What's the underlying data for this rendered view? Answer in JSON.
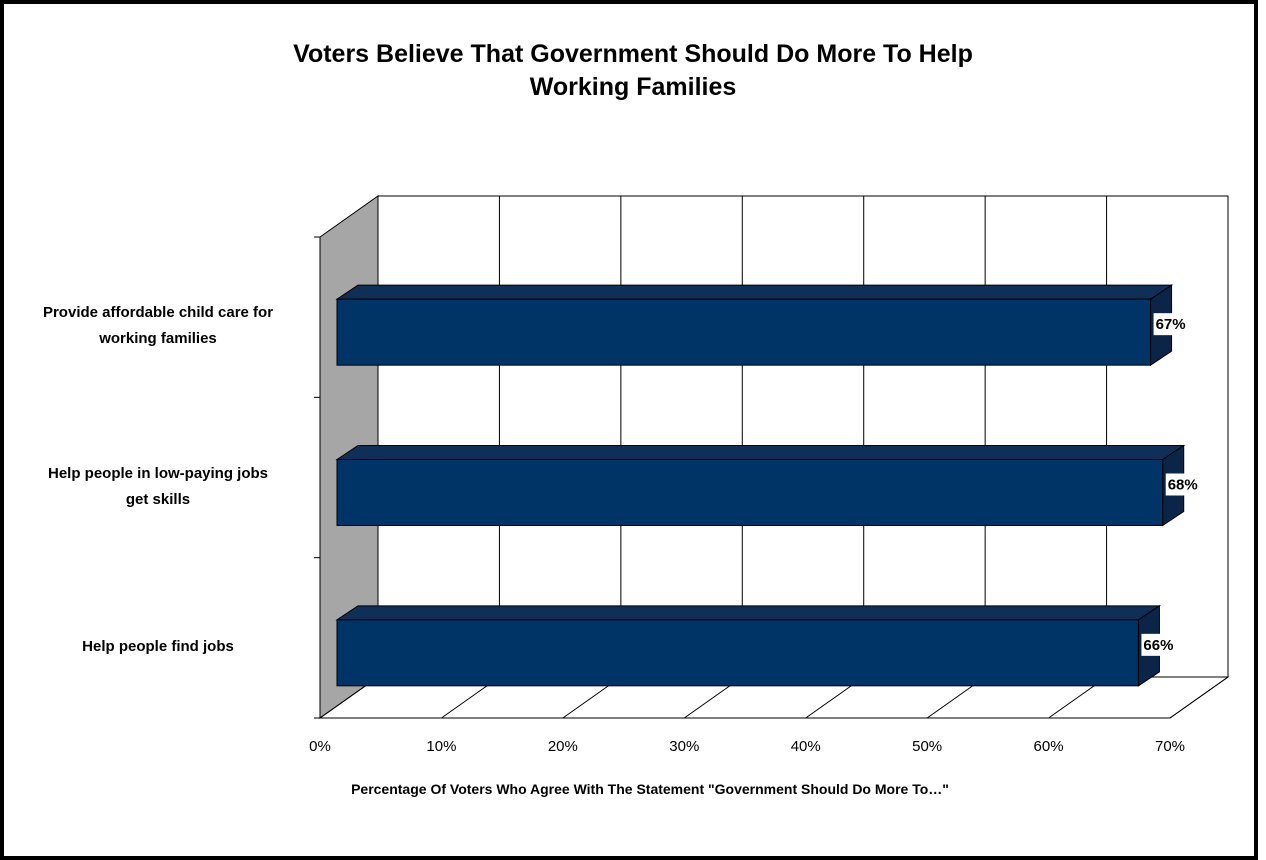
{
  "chart_data": {
    "type": "bar",
    "orientation": "horizontal",
    "title_lines": [
      "Voters Believe That Government Should Do More To Help",
      "Working Families"
    ],
    "categories": [
      {
        "lines": [
          "Provide affordable child care for",
          "working families"
        ]
      },
      {
        "lines": [
          "Help people in low-paying jobs",
          "get skills"
        ]
      },
      {
        "lines": [
          "Help people find jobs"
        ]
      }
    ],
    "values": [
      67,
      68,
      66
    ],
    "data_labels": [
      "67%",
      "68%",
      "66%"
    ],
    "x_ticks": [
      "0%",
      "10%",
      "20%",
      "30%",
      "40%",
      "50%",
      "60%",
      "70%"
    ],
    "xlim": [
      0,
      70
    ],
    "xlabel": "Percentage Of Voters Who Agree With The Statement \"Government Should Do More To…\"",
    "grid": true,
    "legend": "none",
    "style": "3d",
    "colors": {
      "bar_front": "#003366",
      "bar_top": "#0f2f57",
      "bar_side": "#0a2548",
      "wall": "#a6a6a6",
      "grid": "#000000"
    }
  }
}
